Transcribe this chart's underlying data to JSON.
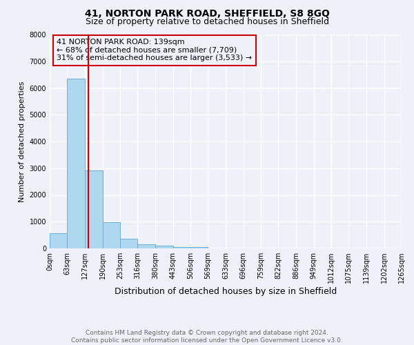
{
  "title1": "41, NORTON PARK ROAD, SHEFFIELD, S8 8GQ",
  "title2": "Size of property relative to detached houses in Sheffield",
  "xlabel": "Distribution of detached houses by size in Sheffield",
  "ylabel": "Number of detached properties",
  "bin_edges": [
    0,
    63,
    127,
    190,
    253,
    316,
    380,
    443,
    506,
    569,
    633,
    696,
    759,
    822,
    886,
    949,
    1012,
    1075,
    1139,
    1202,
    1265
  ],
  "bin_labels": [
    "0sqm",
    "63sqm",
    "127sqm",
    "190sqm",
    "253sqm",
    "316sqm",
    "380sqm",
    "443sqm",
    "506sqm",
    "569sqm",
    "633sqm",
    "696sqm",
    "759sqm",
    "822sqm",
    "886sqm",
    "949sqm",
    "1012sqm",
    "1075sqm",
    "1139sqm",
    "1202sqm",
    "1265sqm"
  ],
  "counts": [
    570,
    6350,
    2910,
    990,
    370,
    155,
    110,
    60,
    55,
    0,
    0,
    0,
    0,
    0,
    0,
    0,
    0,
    0,
    0,
    0
  ],
  "bar_color": "#add8f0",
  "bar_edge_color": "#6baed6",
  "property_size": 139,
  "vline_color": "#cc0000",
  "ylim": [
    0,
    8000
  ],
  "annotation_line1": "41 NORTON PARK ROAD: 139sqm",
  "annotation_line2": "← 68% of detached houses are smaller (7,709)",
  "annotation_line3": "31% of semi-detached houses are larger (3,533) →",
  "annotation_box_color": "#cc0000",
  "footer_text": "Contains HM Land Registry data © Crown copyright and database right 2024.\nContains public sector information licensed under the Open Government Licence v3.0.",
  "background_color": "#eef2f8",
  "grid_color": "#ffffff",
  "title1_fontsize": 10,
  "title2_fontsize": 9,
  "xlabel_fontsize": 9,
  "ylabel_fontsize": 8,
  "tick_fontsize": 7,
  "footer_fontsize": 6.5,
  "annotation_fontsize": 8
}
